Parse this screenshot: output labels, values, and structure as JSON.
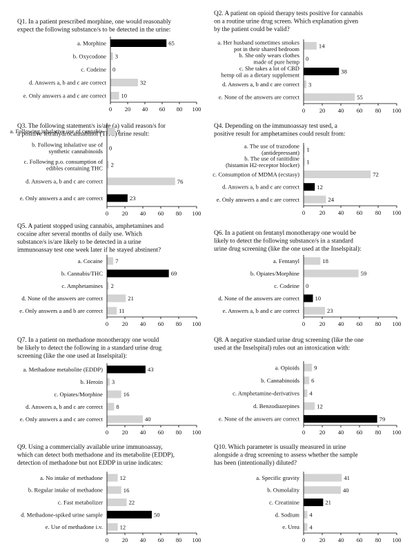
{
  "colors": {
    "correct": "#000000",
    "incorrect": "#d3d3d3",
    "axis": "#000000",
    "text": "#111111"
  },
  "chart_data": [
    {
      "type": "bar",
      "orientation": "horizontal",
      "xlim": [
        0,
        100
      ],
      "xticks": [
        0,
        20,
        40,
        60,
        80,
        100
      ],
      "title": [
        "Q1. In a patient prescribed morphine, one would reasonably",
        "expect the following substance/s to be detected in the urine:"
      ],
      "categories": [
        [
          "a. Morphine"
        ],
        [
          "b. Oxycodone"
        ],
        [
          "c. Codeine"
        ],
        [
          "d. Answers a, b and c are correct"
        ],
        [
          "e. Only answers a and c are correct"
        ]
      ],
      "values": [
        65,
        3,
        0,
        32,
        10
      ],
      "correct": [
        true,
        false,
        false,
        false,
        false
      ]
    },
    {
      "type": "bar",
      "orientation": "horizontal",
      "xlim": [
        0,
        100
      ],
      "xticks": [
        0,
        20,
        40,
        60,
        80,
        100
      ],
      "title": [
        "Q2. A patient on opioid therapy tests positive for cannabis",
        "on a routine urine drug screen. Which explanation given",
        "by the patient could be valid?"
      ],
      "categories": [
        [
          "a. Her husband sometimes smokes",
          "pot in their shared bedroom"
        ],
        [
          "b. She only wears clothes",
          "made of pure hemp"
        ],
        [
          "c. She takes a lot of CBD",
          "hemp oil as a dietary supplement"
        ],
        [
          "d. Answers a, b and c are correct"
        ],
        [
          "e. None of the answers are correct"
        ]
      ],
      "values": [
        14,
        0,
        38,
        3,
        55
      ],
      "correct": [
        false,
        false,
        true,
        false,
        false
      ]
    },
    {
      "type": "bar",
      "orientation": "horizontal",
      "xlim": [
        0,
        100
      ],
      "xticks": [
        0,
        20,
        40,
        60,
        80,
        100
      ],
      "title": [
        "Q3. The following statement/s is/are (a) valid reason/s for",
        "a positive tetrahydrocannabinol (THC) urine result:"
      ],
      "categories": [
        [
          "a. Following inhalative use of cannabis"
        ],
        [
          "b. Following inhalative use of",
          "synthetic cannabinoids"
        ],
        [
          "c. Following p.o. consumption of",
          "edibles containing THC"
        ],
        [
          "d. Answers a, b and c are correct"
        ],
        [
          "e. Only answers a and c are correct"
        ]
      ],
      "values": [
        9,
        0,
        2,
        76,
        23
      ],
      "correct": [
        false,
        false,
        false,
        false,
        true
      ]
    },
    {
      "type": "bar",
      "orientation": "horizontal",
      "xlim": [
        0,
        100
      ],
      "xticks": [
        0,
        20,
        40,
        60,
        80,
        100
      ],
      "title": [
        "Q4. Depending on the immunoassay test used, a",
        "positive result for amphetamines could result from:"
      ],
      "categories": [
        [
          "a. The use of trazodone",
          "(antidepressant)"
        ],
        [
          "b. The use of ranitidine",
          "(histamin H2-receptor blocker)"
        ],
        [
          "c. Consumption of MDMA (ecstasy)"
        ],
        [
          "d. Answers a, b and c are correct"
        ],
        [
          "e. Only answers a and c are correct"
        ]
      ],
      "values": [
        1,
        1,
        72,
        12,
        24
      ],
      "correct": [
        false,
        false,
        false,
        true,
        false
      ]
    },
    {
      "type": "bar",
      "orientation": "horizontal",
      "xlim": [
        0,
        100
      ],
      "xticks": [
        0,
        20,
        40,
        60,
        80,
        100
      ],
      "title": [
        "Q5. A patient stopped using cannabis, amphetamines and",
        "cocaine after several months of daily use. Which",
        "substance/s is/are likely to be detected in a urine",
        "immunoassay test one week later if he stayed abstinent?"
      ],
      "categories": [
        [
          "a. Cocaine"
        ],
        [
          "b. Cannabis/THC"
        ],
        [
          "c. Amphetamines"
        ],
        [
          "d. None of the answers are correct"
        ],
        [
          "e. Only answers a and b are correct"
        ]
      ],
      "values": [
        7,
        69,
        2,
        21,
        11
      ],
      "correct": [
        false,
        true,
        false,
        false,
        false
      ]
    },
    {
      "type": "bar",
      "orientation": "horizontal",
      "xlim": [
        0,
        100
      ],
      "xticks": [
        0,
        20,
        40,
        60,
        80,
        100
      ],
      "title": [
        "Q6. In a patient on fentanyl monotherapy one would be",
        "likely to detect the following substance/s in a standard",
        "urine drug screening (like the one used at the Inselspital):"
      ],
      "categories": [
        [
          "a. Fentanyl"
        ],
        [
          "b. Opiates/Morphine"
        ],
        [
          "c. Codeine"
        ],
        [
          "d. None of the answers are correct"
        ],
        [
          "e. Answers a, b and c are correct"
        ]
      ],
      "values": [
        18,
        59,
        0,
        10,
        23
      ],
      "correct": [
        false,
        false,
        false,
        true,
        false
      ]
    },
    {
      "type": "bar",
      "orientation": "horizontal",
      "xlim": [
        0,
        100
      ],
      "xticks": [
        0,
        20,
        40,
        60,
        80,
        100
      ],
      "title": [
        "Q7. In a patient on methadone monotherapy one would",
        "be likely to detect the following in a standard urine drug",
        "screening (like the one used at Inselspital):"
      ],
      "categories": [
        [
          "a. Methadone metabolite (EDDP)"
        ],
        [
          "b. Heroin"
        ],
        [
          "c. Opiates/Morphine"
        ],
        [
          "d. Answers a, b and c are correct"
        ],
        [
          "e. Only answers a and c are correct"
        ]
      ],
      "values": [
        43,
        3,
        16,
        8,
        40
      ],
      "correct": [
        true,
        false,
        false,
        false,
        false
      ]
    },
    {
      "type": "bar",
      "orientation": "horizontal",
      "xlim": [
        0,
        100
      ],
      "xticks": [
        0,
        20,
        40,
        60,
        80,
        100
      ],
      "title": [
        "Q8. A negative standard urine drug screening (like the one",
        "used at the Inselspital) rules out an intoxication with:"
      ],
      "categories": [
        [
          "a. Opioids"
        ],
        [
          "b. Cannabinoids"
        ],
        [
          "c. Amphetamine-derivatives"
        ],
        [
          "d. Benzodiazepines"
        ],
        [
          "e. None of the answers are correct"
        ]
      ],
      "values": [
        9,
        6,
        4,
        12,
        79
      ],
      "correct": [
        false,
        false,
        false,
        false,
        true
      ]
    },
    {
      "type": "bar",
      "orientation": "horizontal",
      "xlim": [
        0,
        100
      ],
      "xticks": [
        0,
        20,
        40,
        60,
        80,
        100
      ],
      "title": [
        "Q9. Using a commercially available urine immunoassay,",
        "which can detect both methadone and its metabolite (EDDP),",
        "detection of methadone but not EDDP in urine indicates:"
      ],
      "categories": [
        [
          "a. No intake of methadone"
        ],
        [
          "b. Regular intake of methadone"
        ],
        [
          "c. Fast metabolizer"
        ],
        [
          "d. Methadone-spiked urine sample"
        ],
        [
          "e. Use of methadone i.v."
        ]
      ],
      "values": [
        12,
        16,
        22,
        50,
        12
      ],
      "correct": [
        false,
        false,
        false,
        true,
        false
      ]
    },
    {
      "type": "bar",
      "orientation": "horizontal",
      "xlim": [
        0,
        100
      ],
      "xticks": [
        0,
        20,
        40,
        60,
        80,
        100
      ],
      "title": [
        "Q10. Which parameter is usually measured in urine",
        "alongside a drug screening to assess whether the sample",
        "has been (intentionally) diluted?"
      ],
      "categories": [
        [
          "a. Specific gravity"
        ],
        [
          "b. Osmolality"
        ],
        [
          "c. Creatinine"
        ],
        [
          "d. Sodium"
        ],
        [
          "e. Urea"
        ]
      ],
      "values": [
        41,
        40,
        21,
        4,
        4
      ],
      "correct": [
        false,
        false,
        true,
        false,
        false
      ]
    }
  ]
}
